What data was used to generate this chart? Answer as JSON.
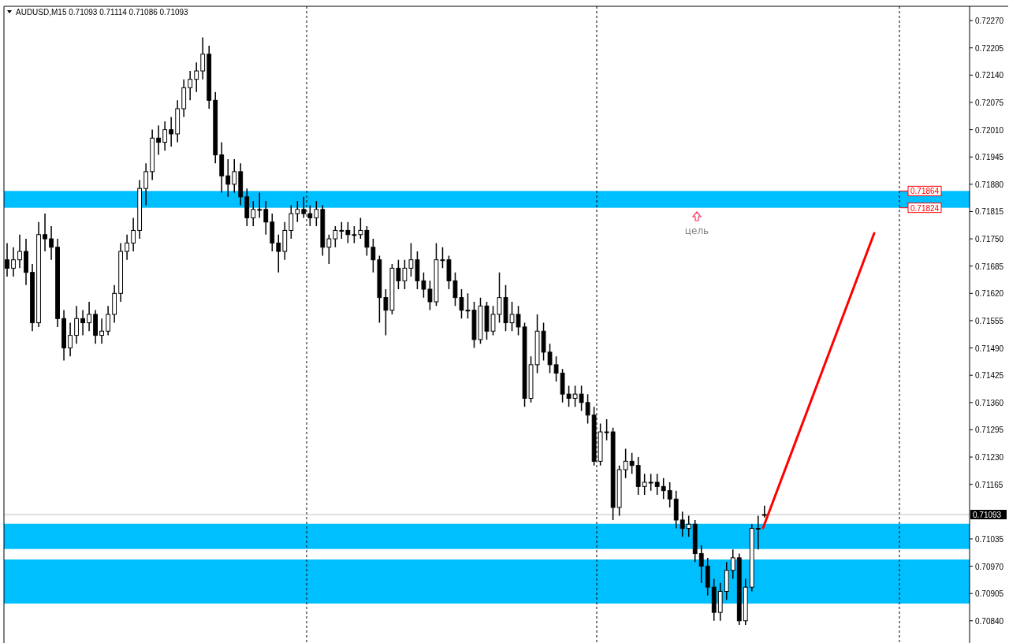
{
  "chart_data": {
    "type": "candlestick",
    "title": "AUDUSD,M15  0.71093 0.71114 0.71086 0.71093",
    "categories": [
      null,
      null,
      null,
      null,
      null,
      null,
      null,
      null,
      null,
      null,
      null,
      null,
      null,
      null,
      null,
      null,
      null,
      null,
      null,
      null,
      null,
      null,
      null,
      null,
      null,
      null,
      null,
      null,
      null,
      null,
      null,
      null,
      null,
      null,
      null,
      null,
      null,
      null,
      null,
      null,
      null,
      null,
      null,
      null,
      null,
      null,
      null,
      null,
      null,
      null,
      null,
      null,
      null,
      null,
      null,
      null,
      null,
      null,
      null,
      null,
      null,
      null,
      null,
      null,
      null,
      null,
      null,
      null,
      null,
      null,
      null,
      null,
      null,
      null,
      null,
      null,
      null,
      null,
      null,
      null,
      null,
      null,
      null,
      null,
      null,
      null,
      null,
      null,
      null,
      null,
      null,
      null,
      null,
      null,
      null,
      null,
      null,
      null,
      null,
      null,
      null,
      null,
      null,
      null,
      null,
      null,
      null,
      null,
      null,
      null,
      null,
      null,
      null,
      null,
      null,
      null,
      null,
      null,
      null,
      null,
      null,
      null,
      null,
      null,
      null,
      null,
      null,
      null,
      null,
      null,
      null,
      null,
      null,
      null,
      null,
      null,
      null,
      null,
      null,
      null,
      null,
      null,
      null,
      null,
      null,
      null,
      null,
      null,
      null,
      null,
      null,
      null,
      null
    ],
    "ohlc": [
      [
        0.717,
        0.7174,
        0.7166,
        0.7168
      ],
      [
        0.7168,
        0.7173,
        0.7166,
        0.717
      ],
      [
        0.717,
        0.7176,
        0.7168,
        0.7172
      ],
      [
        0.7172,
        0.7175,
        0.7164,
        0.7167
      ],
      [
        0.7167,
        0.7169,
        0.7153,
        0.7155
      ],
      [
        0.7155,
        0.7179,
        0.7154,
        0.7176
      ],
      [
        0.7176,
        0.7181,
        0.7172,
        0.7175
      ],
      [
        0.7175,
        0.7178,
        0.717,
        0.7173
      ],
      [
        0.7173,
        0.7175,
        0.7154,
        0.7156
      ],
      [
        0.7156,
        0.7158,
        0.7146,
        0.7149
      ],
      [
        0.7149,
        0.7155,
        0.7147,
        0.7152
      ],
      [
        0.7152,
        0.7159,
        0.715,
        0.7156
      ],
      [
        0.7156,
        0.7158,
        0.7152,
        0.7155
      ],
      [
        0.7155,
        0.716,
        0.7153,
        0.7157
      ],
      [
        0.7157,
        0.7158,
        0.715,
        0.7152
      ],
      [
        0.7152,
        0.7156,
        0.715,
        0.7153
      ],
      [
        0.7153,
        0.7159,
        0.7152,
        0.7157
      ],
      [
        0.7157,
        0.7164,
        0.7155,
        0.7162
      ],
      [
        0.7162,
        0.7174,
        0.716,
        0.7172
      ],
      [
        0.7172,
        0.7176,
        0.717,
        0.7174
      ],
      [
        0.7174,
        0.718,
        0.7172,
        0.7177
      ],
      [
        0.7177,
        0.7189,
        0.7175,
        0.7187
      ],
      [
        0.7187,
        0.7193,
        0.7183,
        0.7191
      ],
      [
        0.7191,
        0.7201,
        0.7189,
        0.7199
      ],
      [
        0.7199,
        0.7202,
        0.7195,
        0.7198
      ],
      [
        0.7198,
        0.7203,
        0.7196,
        0.7201
      ],
      [
        0.7201,
        0.7204,
        0.7197,
        0.72
      ],
      [
        0.72,
        0.7208,
        0.7198,
        0.7206
      ],
      [
        0.7206,
        0.7213,
        0.7204,
        0.7211
      ],
      [
        0.7211,
        0.7215,
        0.7208,
        0.7213
      ],
      [
        0.7213,
        0.7217,
        0.721,
        0.7215
      ],
      [
        0.7215,
        0.7223,
        0.7213,
        0.7219
      ],
      [
        0.7219,
        0.7221,
        0.7206,
        0.7208
      ],
      [
        0.7208,
        0.721,
        0.7193,
        0.7195
      ],
      [
        0.7195,
        0.7198,
        0.7186,
        0.719
      ],
      [
        0.719,
        0.7194,
        0.7185,
        0.7188
      ],
      [
        0.7188,
        0.7194,
        0.7186,
        0.7191
      ],
      [
        0.7191,
        0.7193,
        0.7183,
        0.7185
      ],
      [
        0.7185,
        0.7187,
        0.7178,
        0.718
      ],
      [
        0.718,
        0.7184,
        0.7178,
        0.7182
      ],
      [
        0.7182,
        0.7186,
        0.718,
        0.7182
      ],
      [
        0.7182,
        0.7184,
        0.7176,
        0.7179
      ],
      [
        0.7179,
        0.7181,
        0.7172,
        0.7174
      ],
      [
        0.7174,
        0.7176,
        0.7167,
        0.7172
      ],
      [
        0.7172,
        0.7179,
        0.717,
        0.7177
      ],
      [
        0.7177,
        0.7183,
        0.7175,
        0.7181
      ],
      [
        0.7181,
        0.7184,
        0.7179,
        0.7182
      ],
      [
        0.7182,
        0.7185,
        0.718,
        0.7181
      ],
      [
        0.7181,
        0.7183,
        0.7178,
        0.718
      ],
      [
        0.718,
        0.7184,
        0.7178,
        0.7182
      ],
      [
        0.7182,
        0.7183,
        0.7171,
        0.7173
      ],
      [
        0.7173,
        0.7176,
        0.7169,
        0.7175
      ],
      [
        0.7175,
        0.7178,
        0.7173,
        0.7177
      ],
      [
        0.7177,
        0.7179,
        0.7175,
        0.7177
      ],
      [
        0.7177,
        0.7179,
        0.7174,
        0.7176
      ],
      [
        0.7176,
        0.7178,
        0.7174,
        0.7176
      ],
      [
        0.7176,
        0.718,
        0.7175,
        0.7177
      ],
      [
        0.7177,
        0.7178,
        0.7171,
        0.7173
      ],
      [
        0.7173,
        0.7175,
        0.7167,
        0.717
      ],
      [
        0.717,
        0.7171,
        0.7155,
        0.7161
      ],
      [
        0.7161,
        0.7163,
        0.7152,
        0.7158
      ],
      [
        0.7158,
        0.7169,
        0.7157,
        0.7168
      ],
      [
        0.7168,
        0.717,
        0.7163,
        0.7165
      ],
      [
        0.7165,
        0.717,
        0.7163,
        0.7168
      ],
      [
        0.7168,
        0.7174,
        0.7166,
        0.717
      ],
      [
        0.717,
        0.7172,
        0.7163,
        0.7165
      ],
      [
        0.7165,
        0.7167,
        0.7161,
        0.7163
      ],
      [
        0.7163,
        0.7165,
        0.7158,
        0.716
      ],
      [
        0.716,
        0.7174,
        0.7159,
        0.717
      ],
      [
        0.717,
        0.7173,
        0.7168,
        0.717
      ],
      [
        0.717,
        0.7171,
        0.7163,
        0.7165
      ],
      [
        0.7165,
        0.7167,
        0.7159,
        0.7161
      ],
      [
        0.7161,
        0.7163,
        0.7156,
        0.7158
      ],
      [
        0.7158,
        0.7162,
        0.7156,
        0.7158
      ],
      [
        0.7158,
        0.716,
        0.7149,
        0.7151
      ],
      [
        0.7151,
        0.7161,
        0.715,
        0.7159
      ],
      [
        0.7159,
        0.716,
        0.7151,
        0.7153
      ],
      [
        0.7153,
        0.7159,
        0.7152,
        0.7157
      ],
      [
        0.7157,
        0.7167,
        0.7155,
        0.7161
      ],
      [
        0.7161,
        0.7164,
        0.7153,
        0.7155
      ],
      [
        0.7155,
        0.716,
        0.7153,
        0.7157
      ],
      [
        0.7157,
        0.7159,
        0.7152,
        0.7154
      ],
      [
        0.7154,
        0.7155,
        0.7135,
        0.7137
      ],
      [
        0.7137,
        0.7147,
        0.7136,
        0.7145
      ],
      [
        0.7145,
        0.7157,
        0.7143,
        0.7153
      ],
      [
        0.7153,
        0.7155,
        0.7146,
        0.7148
      ],
      [
        0.7148,
        0.715,
        0.7143,
        0.7145
      ],
      [
        0.7145,
        0.7147,
        0.7141,
        0.7143
      ],
      [
        0.7143,
        0.7144,
        0.7136,
        0.7138
      ],
      [
        0.7138,
        0.714,
        0.7135,
        0.7137
      ],
      [
        0.7137,
        0.714,
        0.7135,
        0.7138
      ],
      [
        0.7138,
        0.714,
        0.7134,
        0.7136
      ],
      [
        0.7136,
        0.7138,
        0.7131,
        0.7133
      ],
      [
        0.7133,
        0.7135,
        0.7121,
        0.7122
      ],
      [
        0.7122,
        0.7131,
        0.7121,
        0.7129
      ],
      [
        0.7129,
        0.7132,
        0.7127,
        0.7129
      ],
      [
        0.7129,
        0.713,
        0.7108,
        0.7111
      ],
      [
        0.7111,
        0.7121,
        0.7109,
        0.712
      ],
      [
        0.712,
        0.7125,
        0.7118,
        0.7122
      ],
      [
        0.7122,
        0.7124,
        0.7119,
        0.7121
      ],
      [
        0.7121,
        0.7123,
        0.7114,
        0.7116
      ],
      [
        0.7116,
        0.7119,
        0.7114,
        0.7117
      ],
      [
        0.7117,
        0.7119,
        0.7115,
        0.7117
      ],
      [
        0.7117,
        0.7119,
        0.7114,
        0.7116
      ],
      [
        0.7116,
        0.7118,
        0.7113,
        0.7115
      ],
      [
        0.7115,
        0.7117,
        0.7111,
        0.7113
      ],
      [
        0.7113,
        0.7115,
        0.7106,
        0.7108
      ],
      [
        0.7108,
        0.711,
        0.7104,
        0.7106
      ],
      [
        0.7106,
        0.7109,
        0.7104,
        0.7107
      ],
      [
        0.7107,
        0.7108,
        0.7098,
        0.71
      ],
      [
        0.71,
        0.7102,
        0.7093,
        0.7097
      ],
      [
        0.7097,
        0.7099,
        0.709,
        0.7092
      ],
      [
        0.7092,
        0.7094,
        0.7084,
        0.7086
      ],
      [
        0.7086,
        0.7093,
        0.7084,
        0.7091
      ],
      [
        0.7091,
        0.7098,
        0.7089,
        0.7096
      ],
      [
        0.7096,
        0.7101,
        0.7094,
        0.7099
      ],
      [
        0.7099,
        0.71,
        0.7083,
        0.7084
      ],
      [
        0.7084,
        0.7094,
        0.7083,
        0.7092
      ],
      [
        0.7092,
        0.7107,
        0.7091,
        0.7106
      ],
      [
        0.7106,
        0.7109,
        0.7101,
        0.7106
      ],
      [
        0.71093,
        0.71114,
        0.71086,
        0.71093
      ],
      null,
      null,
      null,
      null,
      null,
      null,
      null,
      null,
      null,
      null,
      null,
      null,
      null,
      null,
      null,
      null,
      null,
      null,
      null,
      null,
      null,
      null,
      null,
      null,
      null,
      null,
      null,
      null,
      null,
      null,
      null,
      null
    ],
    "ylim": [
      0.70787,
      0.72304
    ],
    "yticks": [
      {
        "value": 0.7227,
        "label": "0.72270"
      },
      {
        "value": 0.72205,
        "label": "0.72205"
      },
      {
        "value": 0.7214,
        "label": "0.72140"
      },
      {
        "value": 0.72075,
        "label": "0.72075"
      },
      {
        "value": 0.7201,
        "label": "0.72010"
      },
      {
        "value": 0.71945,
        "label": "0.71945"
      },
      {
        "value": 0.7188,
        "label": "0.71880"
      },
      {
        "value": 0.71815,
        "label": "0.71815"
      },
      {
        "value": 0.7175,
        "label": "0.71750"
      },
      {
        "value": 0.71685,
        "label": "0.71685"
      },
      {
        "value": 0.7162,
        "label": "0.71620"
      },
      {
        "value": 0.71555,
        "label": "0.71555"
      },
      {
        "value": 0.7149,
        "label": "0.71490"
      },
      {
        "value": 0.71425,
        "label": "0.71425"
      },
      {
        "value": 0.7136,
        "label": "0.71360"
      },
      {
        "value": 0.71295,
        "label": "0.71295"
      },
      {
        "value": 0.7123,
        "label": "0.71230"
      },
      {
        "value": 0.71165,
        "label": "0.71165"
      },
      {
        "value": 0.71035,
        "label": "0.71035"
      },
      {
        "value": 0.7097,
        "label": "0.70970"
      },
      {
        "value": 0.70905,
        "label": "0.70905"
      },
      {
        "value": 0.7084,
        "label": "0.70840"
      }
    ],
    "tick_labels": "y",
    "bands": [
      {
        "axis": "y",
        "from": 0.71824,
        "to": 0.71864,
        "color": "#00bfff"
      },
      {
        "axis": "y",
        "from": 0.70881,
        "to": 0.70986,
        "color": "#00bfff"
      },
      {
        "axis": "y",
        "from": 0.71011,
        "to": 0.71071,
        "color": "#00bfff"
      }
    ],
    "ref_lines": [
      {
        "axis": "y",
        "value": 0.71864,
        "label": "0.71864",
        "color": "#ff0000"
      },
      {
        "axis": "y",
        "value": 0.71824,
        "label": "0.71824",
        "color": "#ff0000"
      },
      {
        "axis": "y",
        "value": 0.71093,
        "label": "0.71093",
        "color": "#c0c0c0"
      }
    ],
    "annotations": [
      "цель"
    ]
  }
}
